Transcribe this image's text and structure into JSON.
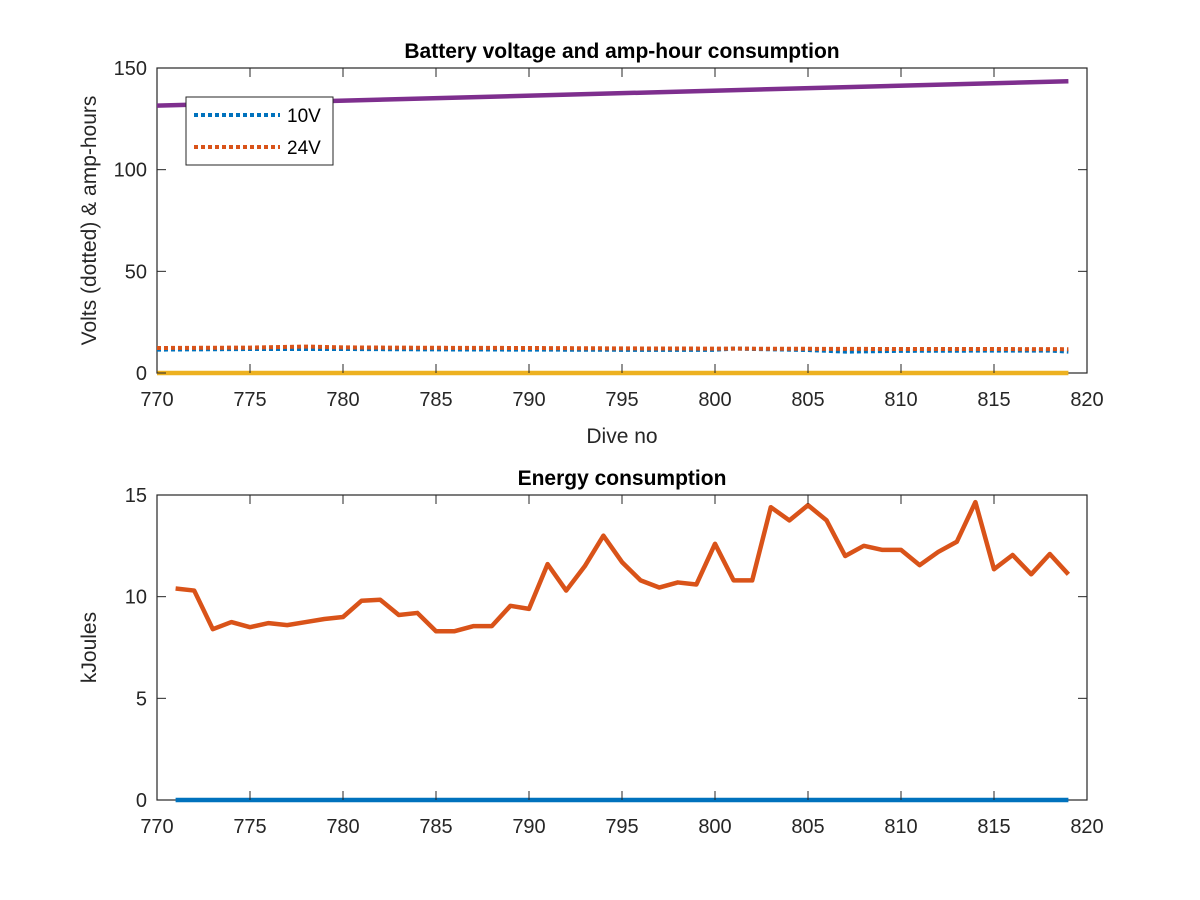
{
  "chart_data": [
    {
      "type": "line",
      "title": "Battery voltage and amp-hour consumption",
      "xlabel": "Dive no",
      "ylabel": "Volts (dotted) & amp-hours",
      "xlim": [
        770,
        820
      ],
      "ylim": [
        0,
        150
      ],
      "xticks": [
        770,
        775,
        780,
        785,
        790,
        795,
        800,
        805,
        810,
        815,
        820
      ],
      "yticks": [
        0,
        50,
        100,
        150
      ],
      "grid": false,
      "legend_position": "top-left",
      "series": [
        {
          "name": "10V",
          "style": "dotted",
          "color": "#0072BD",
          "x": [
            770,
            775,
            780,
            785,
            790,
            795,
            800,
            801,
            805,
            807,
            810,
            815,
            818,
            819
          ],
          "y": [
            11.5,
            11.8,
            11.8,
            11.6,
            11.5,
            11.4,
            11.4,
            12.0,
            11.3,
            10.5,
            10.9,
            11.0,
            11.0,
            10.5
          ]
        },
        {
          "name": "24V",
          "style": "dotted",
          "color": "#D95319",
          "x": [
            770,
            775,
            778,
            780,
            785,
            790,
            795,
            800,
            805,
            810,
            815,
            819
          ],
          "y": [
            12.3,
            12.5,
            13.0,
            12.6,
            12.4,
            12.3,
            12.1,
            12.0,
            11.9,
            11.8,
            11.8,
            11.7
          ]
        },
        {
          "style": "solid",
          "color": "#EDB120",
          "x": [
            770,
            819
          ],
          "y": [
            0,
            0
          ]
        },
        {
          "style": "solid",
          "color": "#7E2F8E",
          "x": [
            770,
            819
          ],
          "y": [
            131.5,
            143.5
          ]
        }
      ]
    },
    {
      "type": "line",
      "title": "Energy consumption",
      "xlabel": "",
      "ylabel": "kJoules",
      "xlim": [
        770,
        820
      ],
      "ylim": [
        0,
        15
      ],
      "xticks": [
        770,
        775,
        780,
        785,
        790,
        795,
        800,
        805,
        810,
        815,
        820
      ],
      "yticks": [
        0,
        5,
        10,
        15
      ],
      "grid": false,
      "series": [
        {
          "style": "solid",
          "color": "#0072BD",
          "x": [
            771,
            819
          ],
          "y": [
            0,
            0
          ]
        },
        {
          "style": "solid",
          "color": "#D95319",
          "x": [
            771,
            772,
            773,
            774,
            775,
            776,
            777,
            778,
            779,
            780,
            781,
            782,
            783,
            784,
            785,
            786,
            787,
            788,
            789,
            790,
            791,
            792,
            793,
            794,
            795,
            796,
            797,
            798,
            799,
            800,
            801,
            802,
            803,
            804,
            805,
            806,
            807,
            808,
            809,
            810,
            811,
            812,
            813,
            814,
            815,
            816,
            817,
            818,
            819
          ],
          "y": [
            10.4,
            10.3,
            8.4,
            8.75,
            8.5,
            8.7,
            8.6,
            8.75,
            8.9,
            9.0,
            9.8,
            9.85,
            9.1,
            9.2,
            8.3,
            8.3,
            8.55,
            8.55,
            9.55,
            9.4,
            11.6,
            10.3,
            11.5,
            13.0,
            11.7,
            10.8,
            10.45,
            10.7,
            10.6,
            12.6,
            10.8,
            10.8,
            14.4,
            13.75,
            14.5,
            13.75,
            12.0,
            12.5,
            12.3,
            12.3,
            11.55,
            12.2,
            12.7,
            14.65,
            11.35,
            12.05,
            11.1,
            12.1,
            11.1
          ]
        }
      ]
    }
  ]
}
